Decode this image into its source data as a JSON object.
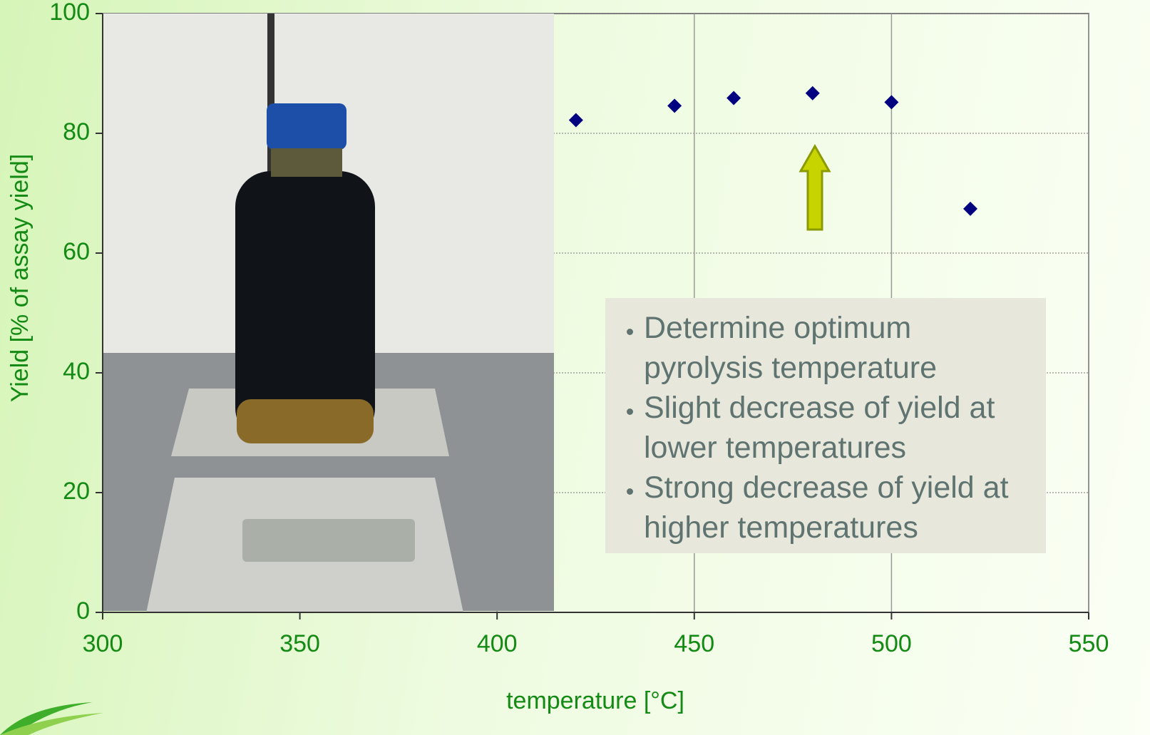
{
  "chart_data": {
    "type": "scatter",
    "x_label": "temperature [°C]",
    "y_label": "Yield  [% of assay yield]",
    "x": [
      420,
      445,
      460,
      480,
      500,
      520
    ],
    "values": [
      82.2,
      84.6,
      85.9,
      86.7,
      85.2,
      67.4
    ],
    "color": "#000080",
    "xlim": [
      300,
      550
    ],
    "xticks": [
      300,
      350,
      400,
      450,
      500,
      550
    ],
    "ylim": [
      0,
      100
    ],
    "yticks": [
      0,
      20,
      40,
      60,
      80,
      100
    ],
    "grid": true,
    "annotations": [
      "Determine optimum pyrolysis temperature",
      "Slight decrease of yield at lower temperatures",
      "Strong decrease of yield at higher temperatures"
    ]
  }
}
